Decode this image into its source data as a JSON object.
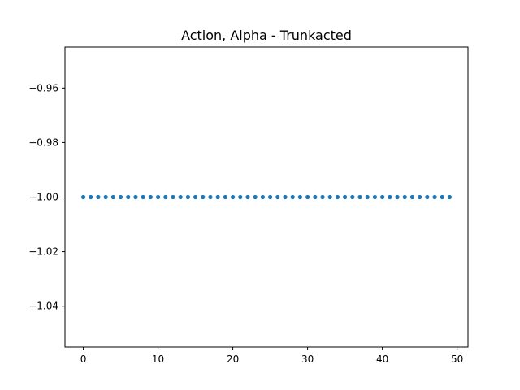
{
  "chart_data": {
    "type": "scatter",
    "title": "Action, Alpha - Trunkacted",
    "xlabel": "",
    "ylabel": "",
    "xlim": [
      -2.45,
      51.45
    ],
    "ylim": [
      -1.055,
      -0.945
    ],
    "x_ticks": [
      0,
      10,
      20,
      30,
      40,
      50
    ],
    "x_tick_labels": [
      "0",
      "10",
      "20",
      "30",
      "40",
      "50"
    ],
    "y_ticks": [
      -0.96,
      -0.98,
      -1.0,
      -1.02,
      -1.04
    ],
    "y_tick_labels": [
      "−0.96",
      "−0.98",
      "−1.00",
      "−1.02",
      "−1.04"
    ],
    "grid": false,
    "marker_color": "#1f77b4",
    "series": [
      {
        "x": [
          0,
          1,
          2,
          3,
          4,
          5,
          6,
          7,
          8,
          9,
          10,
          11,
          12,
          13,
          14,
          15,
          16,
          17,
          18,
          19,
          20,
          21,
          22,
          23,
          24,
          25,
          26,
          27,
          28,
          29,
          30,
          31,
          32,
          33,
          34,
          35,
          36,
          37,
          38,
          39,
          40,
          41,
          42,
          43,
          44,
          45,
          46,
          47,
          48,
          49
        ],
        "y": [
          -1,
          -1,
          -1,
          -1,
          -1,
          -1,
          -1,
          -1,
          -1,
          -1,
          -1,
          -1,
          -1,
          -1,
          -1,
          -1,
          -1,
          -1,
          -1,
          -1,
          -1,
          -1,
          -1,
          -1,
          -1,
          -1,
          -1,
          -1,
          -1,
          -1,
          -1,
          -1,
          -1,
          -1,
          -1,
          -1,
          -1,
          -1,
          -1,
          -1,
          -1,
          -1,
          -1,
          -1,
          -1,
          -1,
          -1,
          -1,
          -1,
          -1
        ]
      }
    ]
  }
}
